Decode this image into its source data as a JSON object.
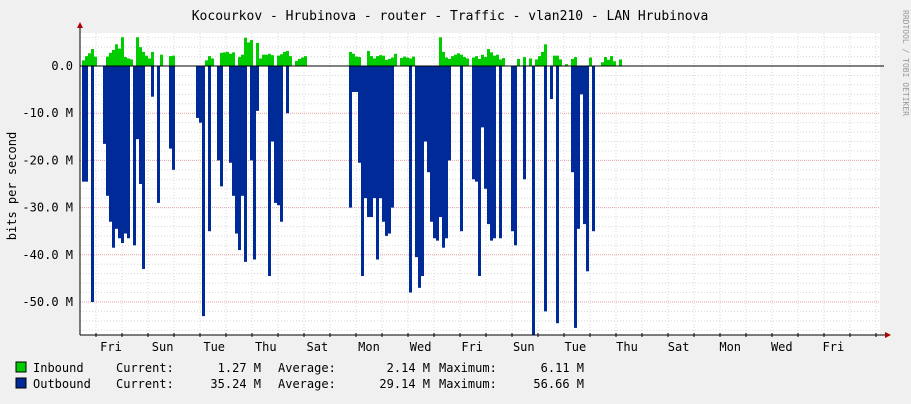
{
  "chart_data": {
    "type": "area",
    "title": "Kocourkov - Hrubinova - router - Traffic - vlan210 - LAN Hrubinova",
    "ylabel": "bits per second",
    "watermark": "RRDTOOL / TOBI OETIKER",
    "ylim": [
      -57,
      7
    ],
    "yticks": [
      0,
      -10,
      -20,
      -30,
      -40,
      -50
    ],
    "ytick_labels": [
      "0.0",
      "-10.0 M",
      "-20.0 M",
      "-30.0 M",
      "-40.0 M",
      "-50.0 M"
    ],
    "xtick_labels": [
      "Fri",
      "Sun",
      "Tue",
      "Thu",
      "Sat",
      "Mon",
      "Wed",
      "Fri",
      "Sun",
      "Tue",
      "Thu",
      "Sat",
      "Mon",
      "Wed",
      "Fri"
    ],
    "series": [
      {
        "name": "Inbound",
        "color": "#00cc00",
        "values": [
          1.2,
          2.1,
          2.7,
          3.6,
          2.0,
          0,
          0,
          0,
          2.0,
          2.8,
          3.4,
          4.6,
          3.7,
          6.1,
          1.9,
          1.6,
          1.4,
          0,
          6.1,
          4.0,
          3.0,
          2.2,
          1.6,
          3.0,
          0,
          0,
          2.4,
          0,
          0,
          2.1,
          2.2,
          0,
          0,
          0,
          0,
          0,
          0,
          0,
          0,
          0,
          0,
          1.2,
          2.1,
          1.6,
          0,
          0,
          2.8,
          2.9,
          3.0,
          2.6,
          2.9,
          0,
          1.9,
          2.4,
          6.0,
          5.0,
          5.5,
          0,
          4.9,
          1.6,
          2.4,
          2.4,
          2.6,
          2.3,
          0,
          2.2,
          2.5,
          3.0,
          3.2,
          2.1,
          0,
          1.1,
          1.5,
          1.8,
          2.1,
          0,
          0,
          0,
          0,
          0,
          0,
          0,
          0,
          0,
          0,
          0,
          0,
          0,
          0,
          3.0,
          2.6,
          2.0,
          1.9,
          0,
          0,
          3.2,
          2.1,
          1.6,
          2.1,
          2.3,
          2.2,
          1.3,
          1.5,
          1.8,
          2.6,
          0,
          1.7,
          2.0,
          1.8,
          1.6,
          2.0,
          0,
          0,
          0,
          0,
          0,
          0,
          0,
          0,
          6.1,
          3.0,
          1.8,
          1.5,
          2.1,
          2.4,
          2.7,
          2.4,
          1.9,
          1.6,
          0,
          1.8,
          2.1,
          1.5,
          2.4,
          1.9,
          3.6,
          2.9,
          2.2,
          2.4,
          1.4,
          1.7,
          0,
          0,
          0,
          0,
          1.5,
          0,
          1.9,
          0,
          1.6,
          0,
          1.4,
          2.1,
          3.0,
          4.6,
          0,
          0,
          2.2,
          2.2,
          1.4,
          0,
          0.4,
          0,
          1.5,
          1.9,
          0,
          0,
          0,
          0,
          1.8,
          0,
          0,
          0,
          0.8,
          1.9,
          1.3,
          2.1,
          1.0,
          0,
          1.4,
          0
        ],
        "note": "hourly-ish samples left to right; one value per 3 px"
      },
      {
        "name": "Outbound",
        "color": "#002a97",
        "values": [
          -24.5,
          -24.5,
          0,
          -50,
          0,
          0,
          0,
          -16.5,
          -27.5,
          -33,
          -38.5,
          -34.5,
          -36.5,
          -37.5,
          -35.5,
          -36.5,
          0,
          -38,
          -15.5,
          -25,
          -43,
          0,
          0,
          -6.5,
          0,
          -29,
          0,
          0,
          0,
          -17.5,
          -22,
          0,
          0,
          0,
          0,
          0,
          0,
          0,
          -11,
          -12,
          -53,
          0,
          -35,
          0,
          0,
          -20,
          -25.5,
          0,
          0,
          -20.5,
          -27.5,
          -35.5,
          -39,
          -27.5,
          -41.5,
          0,
          -20,
          -41,
          -9.5,
          0,
          0,
          0,
          -44.5,
          -16,
          -29,
          -29.5,
          -33,
          0,
          -10,
          0,
          0,
          0,
          0,
          0,
          0,
          0,
          0,
          0,
          0,
          0,
          0,
          0,
          0,
          0,
          0,
          0,
          0,
          0,
          0,
          -30,
          -5.5,
          -5.5,
          -20.5,
          -44.5,
          -28,
          -32,
          -32,
          -28,
          -41,
          -28,
          -33,
          -36,
          -35.5,
          -30,
          0,
          0,
          0,
          0,
          0,
          -48,
          0,
          -40.5,
          -47,
          -44.5,
          -16,
          -22.5,
          -33,
          -36.5,
          -37,
          -32,
          -38.5,
          -36.5,
          -20,
          0,
          0,
          0,
          -35,
          0,
          0,
          0,
          -24,
          -24.5,
          -44.5,
          -13,
          -26,
          -33.5,
          -37,
          -36.5,
          0,
          -36.5,
          0,
          0,
          0,
          -35,
          -38,
          0,
          0,
          -24,
          0,
          0,
          -57,
          0,
          0,
          0,
          -52,
          0,
          -7,
          0,
          -54.5,
          0,
          0,
          0,
          0,
          -22.5,
          -55.5,
          -34.5,
          -6,
          -33.5,
          -43.5,
          0,
          -35,
          0
        ]
      }
    ],
    "legend": [
      {
        "name": "Inbound",
        "current": "1.27 M",
        "average": "2.14 M",
        "maximum": "6.11 M"
      },
      {
        "name": "Outbound",
        "current": "35.24 M",
        "average": "29.14 M",
        "maximum": "56.66 M"
      }
    ],
    "legend_labels": {
      "current": "Current:",
      "average": "Average:",
      "maximum": "Maximum:"
    }
  }
}
